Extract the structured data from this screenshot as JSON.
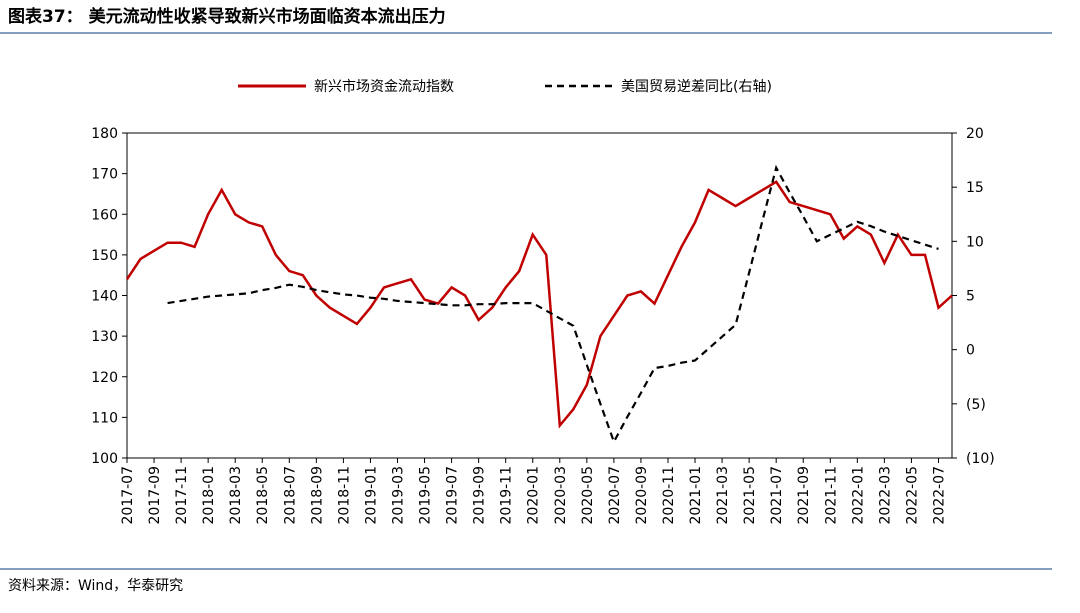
{
  "header": {
    "title": "图表37：  美元流动性收紧导致新兴市场面临资本流出压力"
  },
  "chart_data": {
    "type": "line",
    "categories": [
      "2017-07",
      null,
      "2017-09",
      null,
      "2017-11",
      null,
      "2018-01",
      null,
      "2018-03",
      null,
      "2018-05",
      null,
      "2018-07",
      null,
      "2018-09",
      null,
      "2018-11",
      null,
      "2019-01",
      null,
      "2019-03",
      null,
      "2019-05",
      null,
      "2019-07",
      null,
      "2019-09",
      null,
      "2019-11",
      null,
      "2020-01",
      null,
      "2020-03",
      null,
      "2020-05",
      null,
      "2020-07",
      null,
      "2020-09",
      null,
      "2020-11",
      null,
      "2021-01",
      null,
      "2021-03",
      null,
      "2021-05",
      null,
      "2021-07",
      null,
      "2021-09",
      null,
      "2021-11",
      null,
      "2022-01",
      null,
      "2022-03",
      null,
      "2022-05",
      null,
      "2022-07",
      null
    ],
    "series": [
      {
        "name": "新兴市场资金流动指数",
        "color": "#c00000",
        "axis": "y",
        "dash": false,
        "values": [
          144,
          149,
          151,
          153,
          153,
          152,
          160,
          166,
          160,
          158,
          157,
          150,
          146,
          145,
          140,
          137,
          135,
          133,
          137,
          142,
          143,
          144,
          139,
          138,
          142,
          140,
          134,
          137,
          142,
          146,
          155,
          150,
          108,
          112,
          118,
          130,
          135,
          140,
          141,
          138,
          145,
          152,
          158,
          166,
          164,
          162,
          164,
          166,
          168,
          163,
          162,
          161,
          160,
          154,
          157,
          155,
          148,
          155,
          150,
          150,
          137,
          140
        ]
      },
      {
        "name": "美国贸易逆差同比(右轴)",
        "color": "#000000",
        "axis": "y2",
        "dash": true,
        "values": [
          null,
          null,
          null,
          4.3,
          4.5,
          4.7,
          4.9,
          5.0,
          5.1,
          5.2,
          5.5,
          5.7,
          6.0,
          5.8,
          5.5,
          5.3,
          5.1,
          5.0,
          4.8,
          4.7,
          4.5,
          4.4,
          4.3,
          4.2,
          4.1,
          4.1,
          4.2,
          4.2,
          4.3,
          4.3,
          4.3,
          3.6,
          2.9,
          2.2,
          -1.4,
          -5.0,
          -8.5,
          -6.2,
          -4.0,
          -1.7,
          -1.5,
          -1.2,
          -1.0,
          0.1,
          1.2,
          2.3,
          7.1,
          12.0,
          16.8,
          14.5,
          12.3,
          10.0,
          10.6,
          11.2,
          11.8,
          11.4,
          10.9,
          10.5,
          10.1,
          9.7,
          9.3,
          null
        ]
      }
    ],
    "ylim": [
      100,
      180
    ],
    "yticks": [
      100,
      110,
      120,
      130,
      140,
      150,
      160,
      170,
      180
    ],
    "y2lim": [
      -10,
      20
    ],
    "y2ticks": [
      {
        "value": -10,
        "label": "(10)"
      },
      {
        "value": -5,
        "label": "(5)"
      },
      0,
      5,
      10,
      15,
      20
    ],
    "legend": "top"
  },
  "footer": {
    "source": "资料来源：Wind，华泰研究"
  }
}
